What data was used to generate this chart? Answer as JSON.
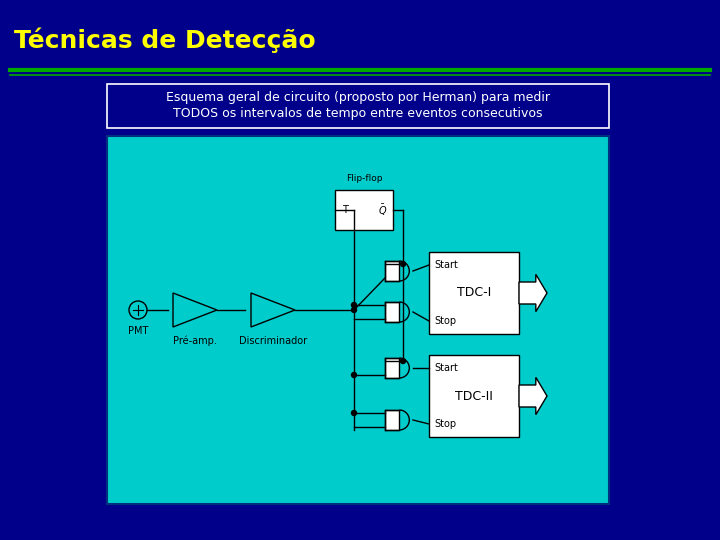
{
  "bg_color": "#00008B",
  "title": "Técnicas de Detecção",
  "title_color": "#FFFF00",
  "title_fontsize": 18,
  "separator_color": "#00AA00",
  "subtitle_line1": "Esquema geral de circuito (proposto por Herman) para medir",
  "subtitle_line2": "TODOS os intervalos de tempo entre eventos consecutivos",
  "subtitle_color": "#FFFFFF",
  "subtitle_fontsize": 9,
  "diagram_bg": "#00CCCC",
  "diagram_border": "#000080",
  "flip_flop_label": "Flip-flop",
  "tdc1_label": "TDC-I",
  "tdc2_label": "TDC-II",
  "pmt_label": "PMT",
  "preamp_label": "Pré-amp.",
  "disc_label": "Discriminador",
  "start_label": "Start",
  "stop_label": "Stop",
  "line_color": "#000000",
  "box_fc": "#FFFFFF",
  "arrow_fc": "#FFFFFF"
}
